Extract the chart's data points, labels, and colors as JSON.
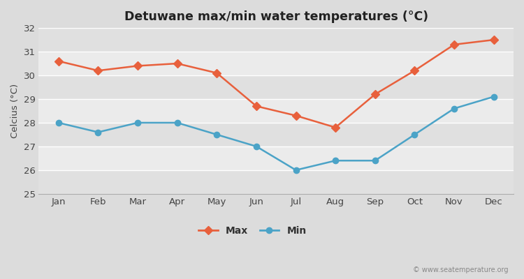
{
  "title": "Detuwane max/min water temperatures (°C)",
  "ylabel": "Celcius (°C)",
  "months": [
    "Jan",
    "Feb",
    "Mar",
    "Apr",
    "May",
    "Jun",
    "Jul",
    "Aug",
    "Sep",
    "Oct",
    "Nov",
    "Dec"
  ],
  "max_values": [
    30.6,
    30.2,
    30.4,
    30.5,
    30.1,
    28.7,
    28.3,
    27.8,
    29.2,
    30.2,
    31.3,
    31.5
  ],
  "min_values": [
    28.0,
    27.6,
    28.0,
    28.0,
    27.5,
    27.0,
    26.0,
    26.4,
    26.4,
    27.5,
    28.6,
    29.1
  ],
  "max_color": "#E8603C",
  "min_color": "#4BA3C7",
  "bg_color": "#DCDCDC",
  "plot_bg_color_light": "#EBEBEB",
  "plot_bg_color_dark": "#E0E0E0",
  "grid_color": "#FFFFFF",
  "ylim": [
    25,
    32
  ],
  "yticks": [
    25,
    26,
    27,
    28,
    29,
    30,
    31,
    32
  ],
  "watermark": "© www.seatemperature.org",
  "legend_max": "Max",
  "legend_min": "Min"
}
